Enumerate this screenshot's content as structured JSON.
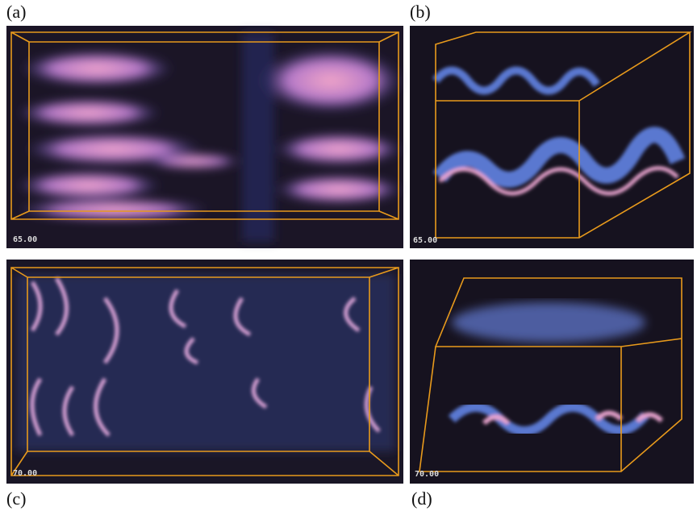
{
  "panels": [
    {
      "label": "(a)",
      "time": "65.00"
    },
    {
      "label": "(b)",
      "time": "65.00"
    },
    {
      "label": "(c)",
      "time": "70.00"
    },
    {
      "label": "(d)",
      "time": "70.00"
    }
  ]
}
